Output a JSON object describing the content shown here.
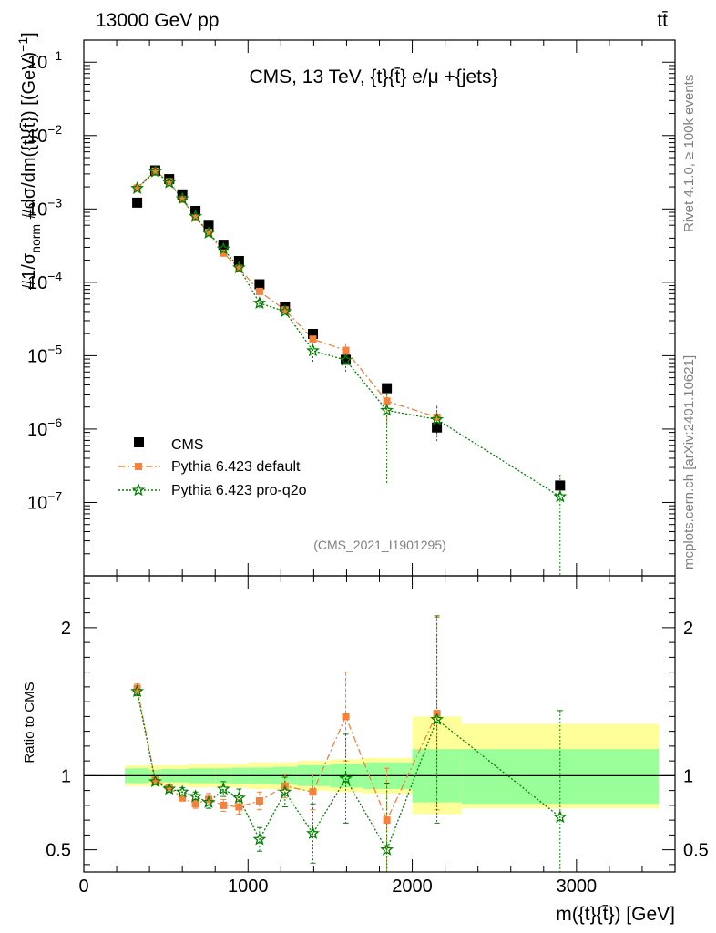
{
  "header": {
    "left": "13000 GeV pp",
    "right": "tt̄"
  },
  "side": {
    "rivet": "Rivet 4.1.0, ≥ 100k events",
    "site": "mcplots.cern.ch [arXiv:2401.10621]"
  },
  "chart_data": {
    "type": "scatter",
    "title": "CMS, 13 TeV, {t}{t̄} e/μ +{jets}",
    "analysis_tag": "(CMS_2021_I1901295)",
    "xlabel": "m({t}{t̄}) [GeV]",
    "ylabel_main": "#1/σnorm #dσ/dm({t}{t̄}) [(GeV)⁻¹]",
    "ylabel_ratio": "Ratio to CMS",
    "xlim": [
      0,
      3600
    ],
    "ylim_main": [
      1e-08,
      0.2
    ],
    "ylim_ratio": [
      0.35,
      2.35
    ],
    "xticks": [
      0,
      1000,
      2000,
      3000
    ],
    "xtick_labels": [
      "0",
      "1000",
      "2000",
      "3000"
    ],
    "yticks_main": [
      1e-07,
      1e-06,
      1e-05,
      0.0001,
      0.001,
      0.01,
      0.1
    ],
    "ytick_main_labels": [
      {
        "base": "10",
        "exp": "−7"
      },
      {
        "base": "10",
        "exp": "−6"
      },
      {
        "base": "10",
        "exp": "−5"
      },
      {
        "base": "10",
        "exp": "−4"
      },
      {
        "base": "10",
        "exp": "−3"
      },
      {
        "base": "10",
        "exp": "−2"
      },
      {
        "base": "10",
        "exp": "−1"
      }
    ],
    "yticks_ratio": [
      0.5,
      1,
      2
    ],
    "ytick_ratio_labels": [
      "0.5",
      "1",
      "2"
    ],
    "x": [
      325,
      435,
      520,
      600,
      680,
      760,
      850,
      945,
      1070,
      1225,
      1395,
      1595,
      1845,
      2150,
      2900
    ],
    "bins": [
      [
        250,
        400
      ],
      [
        400,
        470
      ],
      [
        470,
        560
      ],
      [
        560,
        640
      ],
      [
        640,
        720
      ],
      [
        720,
        800
      ],
      [
        800,
        900
      ],
      [
        900,
        1000
      ],
      [
        1000,
        1150
      ],
      [
        1150,
        1300
      ],
      [
        1300,
        1500
      ],
      [
        1500,
        1700
      ],
      [
        1700,
        2000
      ],
      [
        2000,
        2300
      ],
      [
        2300,
        3500
      ]
    ],
    "ratio_band_stat": [
      [
        0.95,
        1.05
      ],
      [
        0.96,
        1.04
      ],
      [
        0.955,
        1.045
      ],
      [
        0.955,
        1.045
      ],
      [
        0.95,
        1.05
      ],
      [
        0.95,
        1.05
      ],
      [
        0.95,
        1.05
      ],
      [
        0.945,
        1.055
      ],
      [
        0.945,
        1.055
      ],
      [
        0.94,
        1.06
      ],
      [
        0.93,
        1.07
      ],
      [
        0.92,
        1.08
      ],
      [
        0.91,
        1.09
      ],
      [
        0.82,
        1.18
      ],
      [
        0.81,
        1.18
      ]
    ],
    "ratio_band_total": [
      [
        0.93,
        1.07
      ],
      [
        0.93,
        1.07
      ],
      [
        0.93,
        1.07
      ],
      [
        0.93,
        1.07
      ],
      [
        0.92,
        1.08
      ],
      [
        0.92,
        1.08
      ],
      [
        0.92,
        1.08
      ],
      [
        0.92,
        1.08
      ],
      [
        0.91,
        1.09
      ],
      [
        0.91,
        1.09
      ],
      [
        0.9,
        1.1
      ],
      [
        0.89,
        1.11
      ],
      [
        0.88,
        1.12
      ],
      [
        0.74,
        1.4
      ],
      [
        0.78,
        1.35
      ]
    ],
    "series": [
      {
        "name": "CMS",
        "marker": "square",
        "color": "#000000",
        "values": [
          0.00122,
          0.00335,
          0.00255,
          0.00158,
          0.00094,
          0.00059,
          0.000325,
          0.000195,
          9.4e-05,
          4.65e-05,
          1.98e-05,
          8.8e-06,
          3.6e-06,
          1.05e-06,
          1.7e-07
        ],
        "ratio": [
          1,
          1,
          1,
          1,
          1,
          1,
          1,
          1,
          1,
          1,
          1,
          1,
          1,
          1,
          1
        ]
      },
      {
        "name": "Pythia 6.423 default",
        "marker": "square",
        "color": "#f4813c",
        "values": [
          0.00193,
          0.00328,
          0.00235,
          0.00135,
          0.00076,
          0.00048,
          0.00025,
          0.000155,
          7.5e-05,
          4.2e-05,
          1.68e-05,
          1.18e-05,
          2.4e-06,
          1.45e-06,
          null
        ],
        "ratio": [
          1.59,
          0.97,
          0.92,
          0.85,
          0.81,
          0.84,
          0.8,
          0.79,
          0.83,
          0.93,
          0.89,
          1.4,
          0.7,
          1.42,
          null
        ],
        "ratio_err": [
          0.03,
          0.02,
          0.02,
          0.02,
          0.03,
          0.04,
          0.04,
          0.05,
          0.06,
          0.08,
          0.12,
          0.3,
          0.35,
          0.65,
          null
        ]
      },
      {
        "name": "Pythia 6.423 pro-q2o",
        "marker": "star",
        "color": "#008000",
        "values": [
          0.00191,
          0.00322,
          0.00228,
          0.00138,
          0.00079,
          0.00047,
          0.000285,
          0.000158,
          5.2e-05,
          4e-05,
          1.17e-05,
          8.7e-06,
          1.8e-06,
          1.35e-06,
          1.2e-07
        ],
        "ratio": [
          1.57,
          0.96,
          0.91,
          0.89,
          0.86,
          0.82,
          0.91,
          0.85,
          0.57,
          0.89,
          0.61,
          0.98,
          0.5,
          1.38,
          0.72
        ],
        "ratio_err": [
          0.03,
          0.02,
          0.02,
          0.03,
          0.03,
          0.04,
          0.05,
          0.06,
          0.08,
          0.1,
          0.2,
          0.3,
          0.45,
          0.7,
          0.72
        ]
      }
    ]
  }
}
